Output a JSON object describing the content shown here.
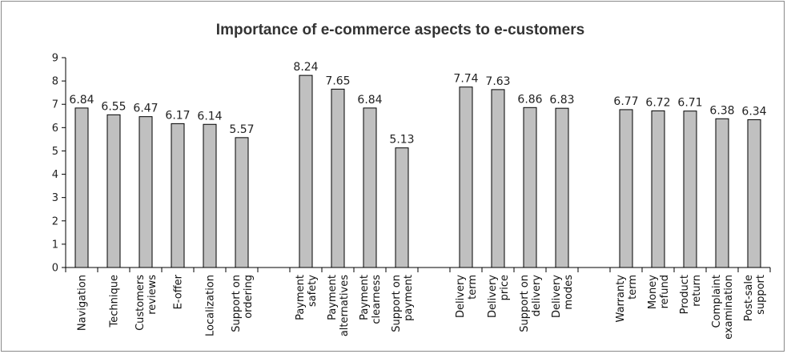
{
  "chart_data": {
    "type": "bar",
    "title": "Importance of e-commerce aspects to e-customers",
    "xlabel": "",
    "ylabel": "",
    "ylim": [
      0,
      9
    ],
    "yticks": [
      0,
      1,
      2,
      3,
      4,
      5,
      6,
      7,
      8,
      9
    ],
    "grid": false,
    "legend": "none",
    "bar_color": "#c0c0c0",
    "groups": [
      {
        "categories": [
          {
            "label": [
              "Navigation"
            ],
            "value": 6.84,
            "value_label": "6.84"
          },
          {
            "label": [
              "Technique"
            ],
            "value": 6.55,
            "value_label": "6.55"
          },
          {
            "label": [
              "Customers",
              "reviews"
            ],
            "value": 6.47,
            "value_label": "6.47"
          },
          {
            "label": [
              "E-offer"
            ],
            "value": 6.17,
            "value_label": "6.17"
          },
          {
            "label": [
              "Localization"
            ],
            "value": 6.14,
            "value_label": "6.14"
          },
          {
            "label": [
              "Support on",
              "ordering"
            ],
            "value": 5.57,
            "value_label": "5.57"
          }
        ]
      },
      {
        "categories": [
          {
            "label": [
              "Payment",
              "safety"
            ],
            "value": 8.24,
            "value_label": "8.24"
          },
          {
            "label": [
              "Payment",
              "alternatives"
            ],
            "value": 7.65,
            "value_label": "7.65"
          },
          {
            "label": [
              "Payment",
              "clearness"
            ],
            "value": 6.84,
            "value_label": "6.84"
          },
          {
            "label": [
              "Support on",
              "payment"
            ],
            "value": 5.13,
            "value_label": "5.13"
          }
        ]
      },
      {
        "categories": [
          {
            "label": [
              "Delivery",
              "term"
            ],
            "value": 7.74,
            "value_label": "7.74"
          },
          {
            "label": [
              "Delivery",
              "price"
            ],
            "value": 7.63,
            "value_label": "7.63"
          },
          {
            "label": [
              "Support on",
              "delivery"
            ],
            "value": 6.86,
            "value_label": "6.86"
          },
          {
            "label": [
              "Delivery",
              "modes"
            ],
            "value": 6.83,
            "value_label": "6.83"
          }
        ]
      },
      {
        "categories": [
          {
            "label": [
              "Warranty",
              "term"
            ],
            "value": 6.77,
            "value_label": "6.77"
          },
          {
            "label": [
              "Money",
              "refund"
            ],
            "value": 6.72,
            "value_label": "6.72"
          },
          {
            "label": [
              "Product",
              "return"
            ],
            "value": 6.71,
            "value_label": "6.71"
          },
          {
            "label": [
              "Complaint",
              "examination"
            ],
            "value": 6.38,
            "value_label": "6.38"
          },
          {
            "label": [
              "Post-sale",
              "support"
            ],
            "value": 6.34,
            "value_label": "6.34"
          }
        ]
      }
    ]
  }
}
